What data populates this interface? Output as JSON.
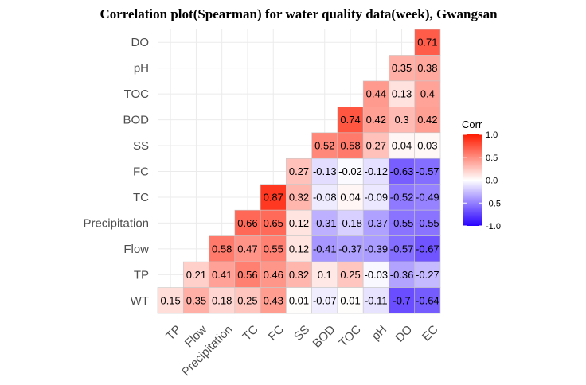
{
  "chart_data": {
    "type": "heatmap",
    "title": "Correlation plot(Spearman) for water quality data(week), Gwangsan",
    "x_categories": [
      "TP",
      "Flow",
      "Precipitation",
      "TC",
      "FC",
      "SS",
      "BOD",
      "TOC",
      "pH",
      "DO",
      "EC"
    ],
    "y_categories": [
      "WT",
      "TP",
      "Flow",
      "Precipitation",
      "TC",
      "FC",
      "SS",
      "BOD",
      "TOC",
      "pH",
      "DO"
    ],
    "rows": [
      {
        "name": "DO",
        "values": [
          "",
          "",
          "",
          "",
          "",
          "",
          "",
          "",
          "",
          "",
          "0.71"
        ]
      },
      {
        "name": "pH",
        "values": [
          "",
          "",
          "",
          "",
          "",
          "",
          "",
          "",
          "",
          "0.35",
          "0.38"
        ]
      },
      {
        "name": "TOC",
        "values": [
          "",
          "",
          "",
          "",
          "",
          "",
          "",
          "",
          "0.44",
          "0.13",
          "0.4"
        ]
      },
      {
        "name": "BOD",
        "values": [
          "",
          "",
          "",
          "",
          "",
          "",
          "",
          "0.74",
          "0.42",
          "0.3",
          "0.42"
        ]
      },
      {
        "name": "SS",
        "values": [
          "",
          "",
          "",
          "",
          "",
          "",
          "0.52",
          "0.58",
          "0.27",
          "0.04",
          "0.03"
        ]
      },
      {
        "name": "FC",
        "values": [
          "",
          "",
          "",
          "",
          "",
          "0.27",
          "-0.13",
          "-0.02",
          "-0.12",
          "-0.63",
          "-0.57"
        ]
      },
      {
        "name": "TC",
        "values": [
          "",
          "",
          "",
          "",
          "0.87",
          "0.32",
          "-0.08",
          "0.04",
          "-0.09",
          "-0.52",
          "-0.49"
        ]
      },
      {
        "name": "Precipitation",
        "values": [
          "",
          "",
          "",
          "0.66",
          "0.65",
          "0.12",
          "-0.31",
          "-0.18",
          "-0.37",
          "-0.55",
          "-0.55"
        ]
      },
      {
        "name": "Flow",
        "values": [
          "",
          "",
          "0.58",
          "0.47",
          "0.55",
          "0.12",
          "-0.41",
          "-0.37",
          "-0.39",
          "-0.57",
          "-0.67"
        ]
      },
      {
        "name": "TP",
        "values": [
          "",
          "0.21",
          "0.41",
          "0.56",
          "0.46",
          "0.32",
          "0.1",
          "0.25",
          "-0.03",
          "-0.36",
          "-0.27"
        ]
      },
      {
        "name": "WT",
        "values": [
          "0.15",
          "0.35",
          "0.18",
          "0.25",
          "0.43",
          "0.01",
          "-0.07",
          "0.01",
          "-0.11",
          "-0.7",
          "-0.64"
        ]
      }
    ],
    "legend": {
      "title": "Corr",
      "ticks": [
        "1.0",
        "0.5",
        "0.0",
        "-0.5",
        "-1.0"
      ],
      "tick_values": [
        1.0,
        0.5,
        0.0,
        -0.5,
        -1.0
      ],
      "placement": "right"
    },
    "colors": {
      "low": "#2800ff",
      "mid": "#ffffff",
      "high": "#ff1a00"
    },
    "value_range": [
      -1,
      1
    ],
    "grid": true
  }
}
